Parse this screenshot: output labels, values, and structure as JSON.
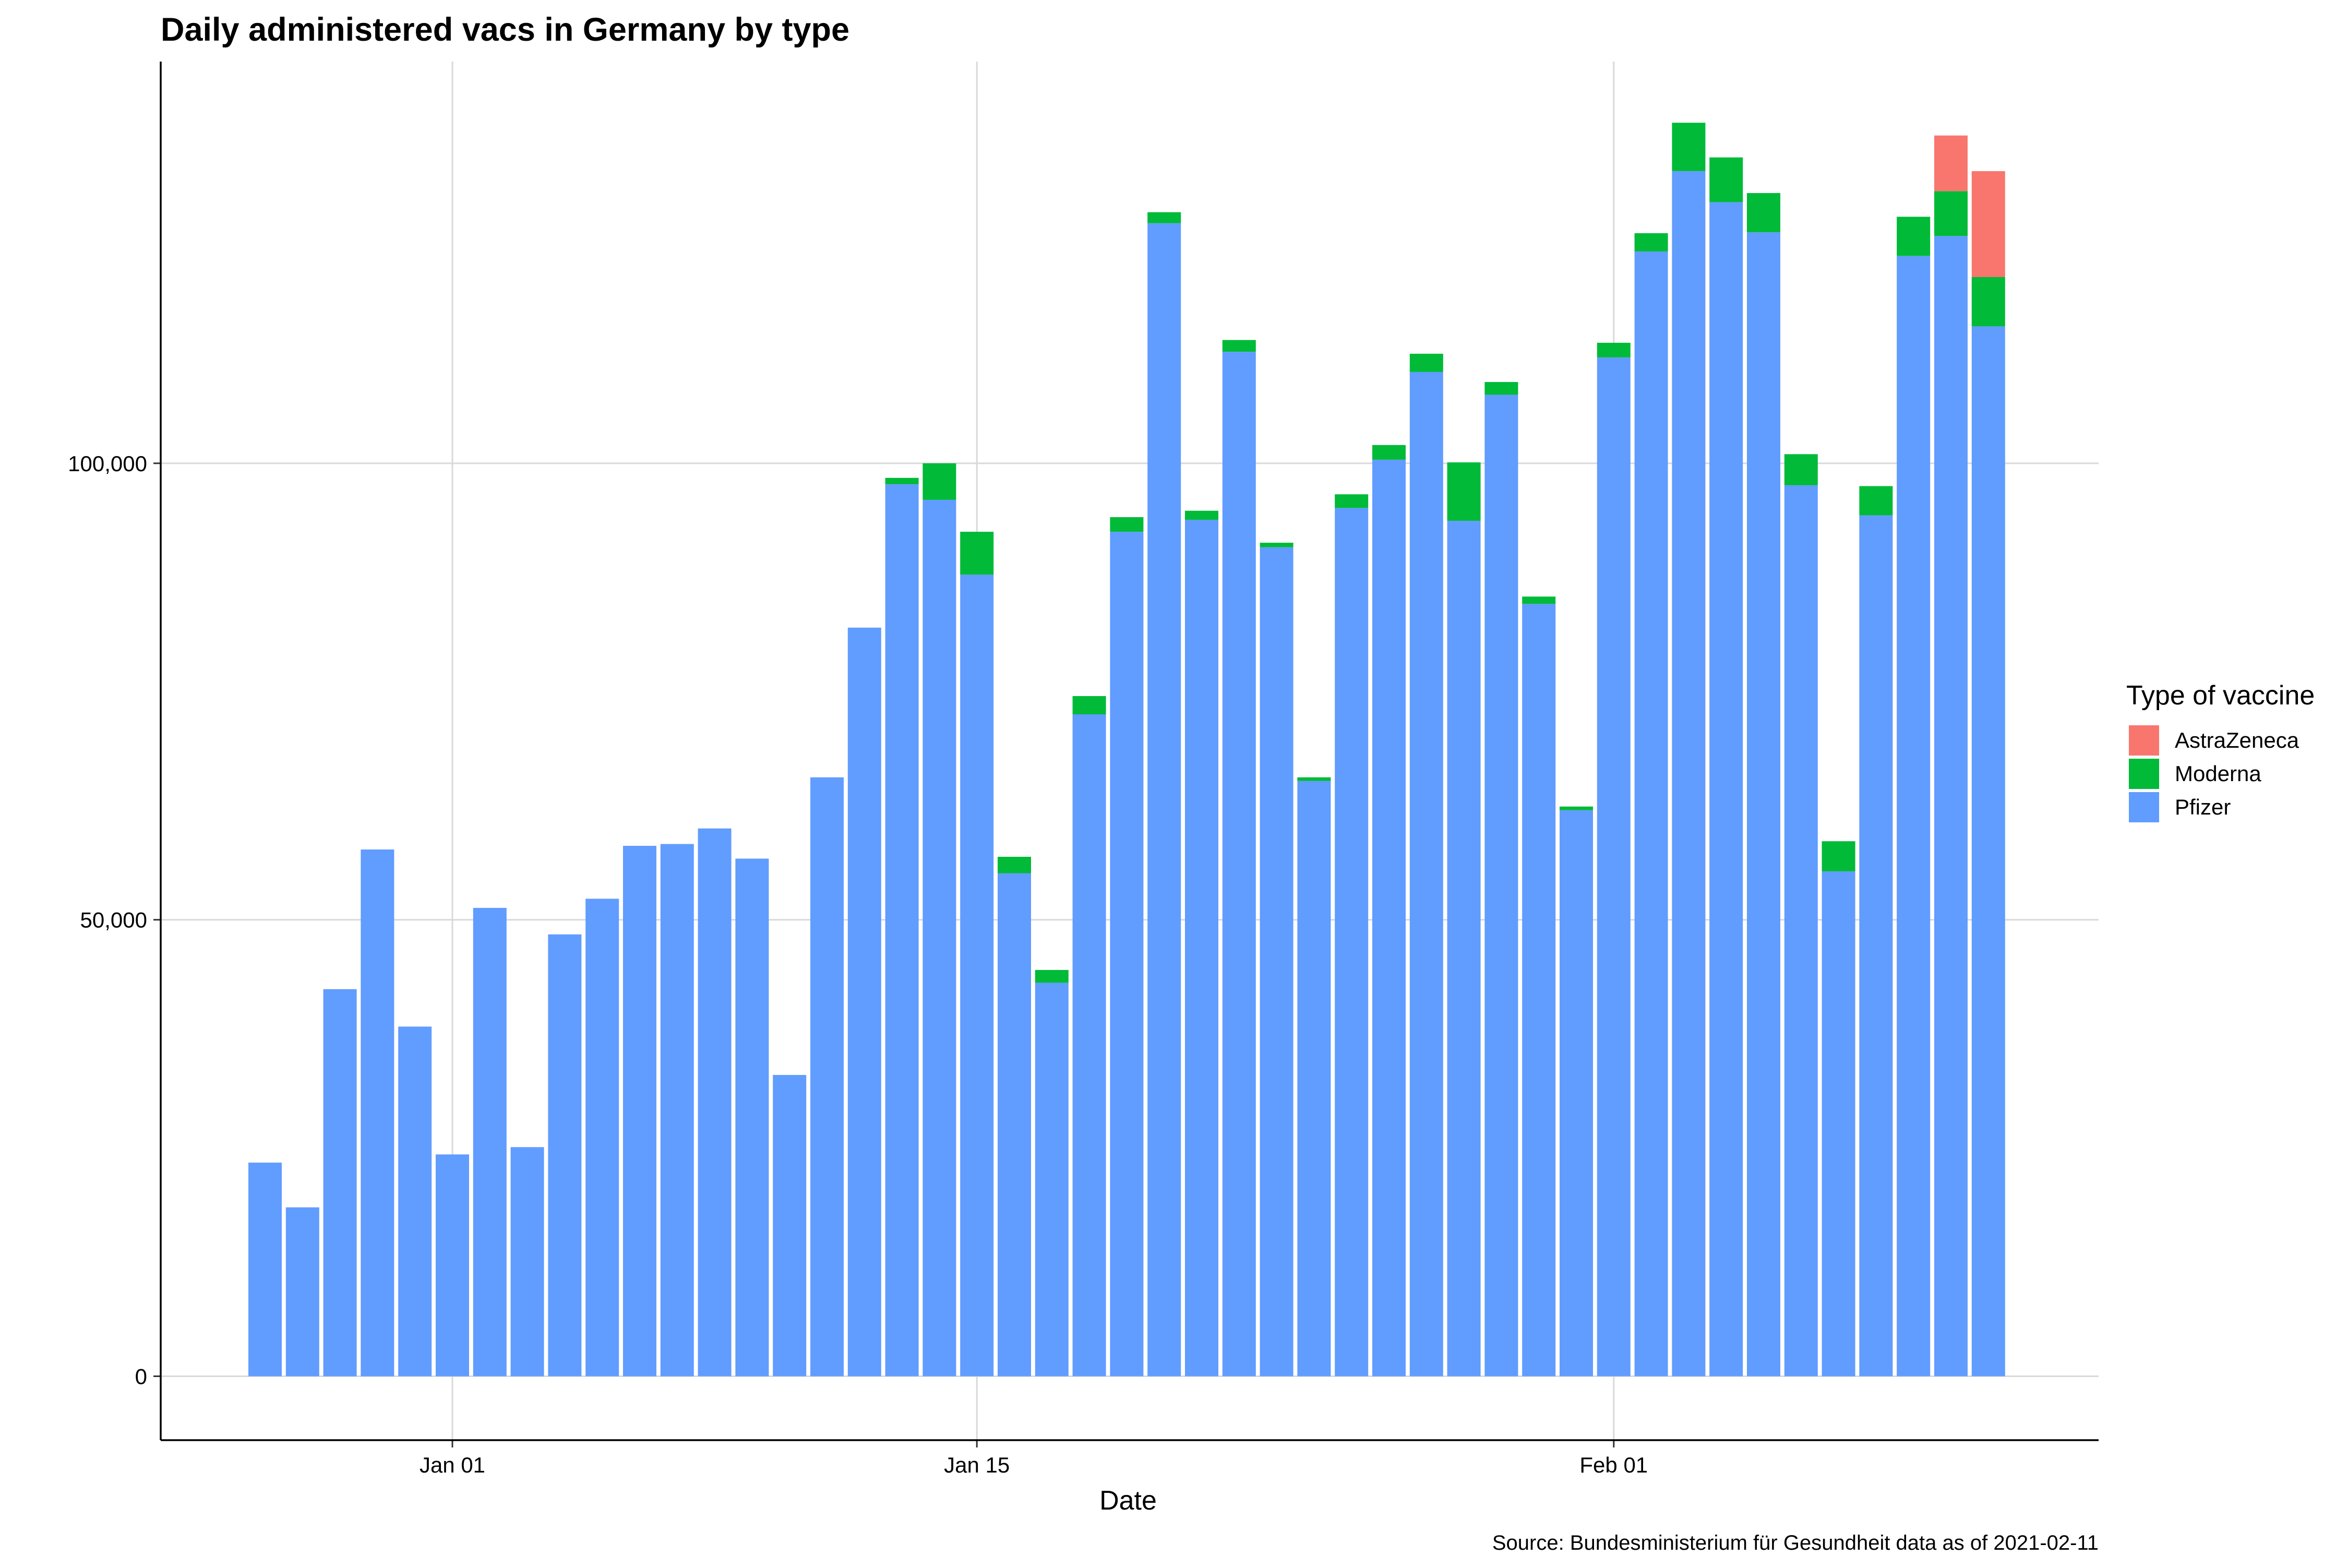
{
  "chart_data": {
    "type": "bar",
    "stacked": true,
    "title": "Daily administered vacs in Germany by type",
    "xlabel": "Date",
    "ylabel": "",
    "caption": "Source: Bundesministerium für Gesundheit data as of 2021-02-11",
    "legend_title": "Type of vaccine",
    "legend_position": "right",
    "grid": true,
    "ylim": [
      -7000,
      144000
    ],
    "x_start_date": "2020-12-27",
    "x_tick_labels": [
      {
        "date": "2021-01-01",
        "label": "Jan 01"
      },
      {
        "date": "2021-01-15",
        "label": "Jan 15"
      },
      {
        "date": "2021-02-01",
        "label": "Feb 01"
      }
    ],
    "y_ticks": [
      {
        "value": 0,
        "label": "0"
      },
      {
        "value": 50000,
        "label": "50,000"
      },
      {
        "value": 100000,
        "label": "100,000"
      }
    ],
    "categories": [
      "2020-12-27",
      "2020-12-28",
      "2020-12-29",
      "2020-12-30",
      "2020-12-31",
      "2021-01-01",
      "2021-01-02",
      "2021-01-03",
      "2021-01-04",
      "2021-01-05",
      "2021-01-06",
      "2021-01-07",
      "2021-01-08",
      "2021-01-09",
      "2021-01-10",
      "2021-01-11",
      "2021-01-12",
      "2021-01-13",
      "2021-01-14",
      "2021-01-15",
      "2021-01-16",
      "2021-01-17",
      "2021-01-18",
      "2021-01-19",
      "2021-01-20",
      "2021-01-21",
      "2021-01-22",
      "2021-01-23",
      "2021-01-24",
      "2021-01-25",
      "2021-01-26",
      "2021-01-27",
      "2021-01-28",
      "2021-01-29",
      "2021-01-30",
      "2021-01-31",
      "2021-02-01",
      "2021-02-02",
      "2021-02-03",
      "2021-02-04",
      "2021-02-05",
      "2021-02-06",
      "2021-02-07",
      "2021-02-08",
      "2021-02-09",
      "2021-02-10",
      "2021-02-11"
    ],
    "series": [
      {
        "name": "Pfizer",
        "color": "#619CFF",
        "values": [
          23400,
          18500,
          42400,
          57700,
          38300,
          24300,
          51300,
          25100,
          48400,
          52300,
          58100,
          58300,
          60000,
          56700,
          33000,
          65600,
          82000,
          97700,
          96000,
          87800,
          55100,
          43100,
          72500,
          92500,
          126300,
          93800,
          112200,
          90800,
          65200,
          95100,
          100400,
          110000,
          93700,
          107500,
          84600,
          62000,
          111600,
          123200,
          132000,
          128600,
          125300,
          97600,
          55300,
          94300,
          122700,
          124900,
          115000
        ]
      },
      {
        "name": "Moderna",
        "color": "#00BA38",
        "values": [
          0,
          0,
          0,
          0,
          0,
          0,
          0,
          0,
          0,
          0,
          0,
          0,
          0,
          0,
          0,
          0,
          0,
          700,
          4000,
          4700,
          1800,
          1400,
          2000,
          1600,
          1200,
          1000,
          1300,
          500,
          400,
          1500,
          1600,
          2000,
          6400,
          1400,
          800,
          400,
          1600,
          2000,
          5300,
          4900,
          4300,
          3400,
          3300,
          3200,
          4300,
          4900,
          5400
        ]
      },
      {
        "name": "AstraZeneca",
        "color": "#F8766D",
        "values": [
          0,
          0,
          0,
          0,
          0,
          0,
          0,
          0,
          0,
          0,
          0,
          0,
          0,
          0,
          0,
          0,
          0,
          0,
          0,
          0,
          0,
          0,
          0,
          0,
          0,
          0,
          0,
          0,
          0,
          0,
          0,
          0,
          0,
          0,
          0,
          0,
          0,
          0,
          0,
          0,
          0,
          0,
          0,
          0,
          0,
          6100,
          11600
        ]
      }
    ],
    "legend_entries": [
      {
        "name": "AstraZeneca",
        "color": "#F8766D"
      },
      {
        "name": "Moderna",
        "color": "#00BA38"
      },
      {
        "name": "Pfizer",
        "color": "#619CFF"
      }
    ]
  }
}
